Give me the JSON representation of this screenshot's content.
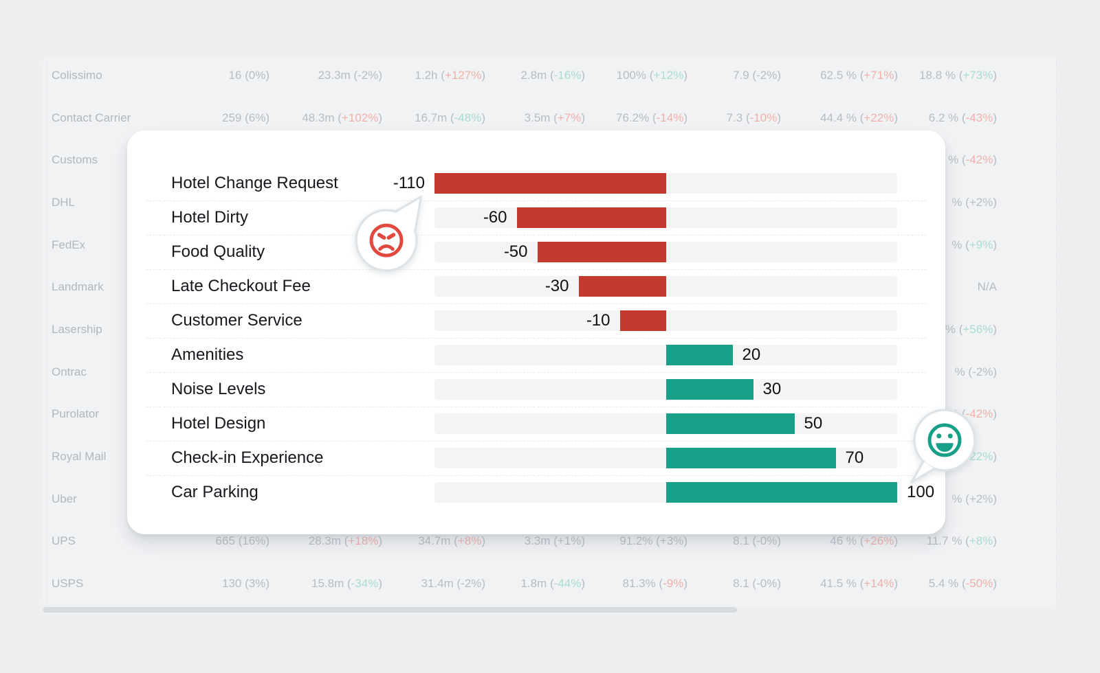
{
  "chart_data": {
    "type": "bar",
    "orientation": "horizontal",
    "categories": [
      "Hotel Change Request",
      "Hotel Dirty",
      "Food Quality",
      "Late Checkout Fee",
      "Customer Service",
      "Amenities",
      "Noise Levels",
      "Hotel Design",
      "Check-in Experience",
      "Car Parking"
    ],
    "values": [
      -110,
      -60,
      -50,
      -30,
      -10,
      20,
      30,
      50,
      70,
      100
    ],
    "value_labels": [
      "-110",
      "-60",
      "-50",
      "-30",
      "-10",
      "20",
      "30",
      "50",
      "70",
      "100"
    ],
    "xlim": [
      -110,
      100
    ],
    "negative_color": "#c23a2e",
    "positive_color": "#17a087",
    "track_color": "#f3f4f4",
    "annotations": {
      "negative_emoji": "angry-face",
      "positive_emoji": "smiley-face"
    }
  },
  "emoji_colors": {
    "angry": "#e2483d",
    "smiley": "#17a087",
    "bubble_outline": "#dde3e7"
  },
  "background_table": {
    "rows": [
      {
        "label": "Colissimo",
        "cells": [
          [
            "16",
            "0%",
            "gray"
          ],
          [
            "23.3m",
            "-2%",
            "gray"
          ],
          [
            "1.2h",
            "+127%",
            "red"
          ],
          [
            "2.8m",
            "-16%",
            "teal"
          ],
          [
            "100%",
            "+12%",
            "teal"
          ],
          [
            "7.9",
            "-2%",
            "gray"
          ],
          [
            "62.5 %",
            "+71%",
            "red"
          ],
          [
            "18.8 %",
            "+73%",
            "teal"
          ]
        ]
      },
      {
        "label": "Contact Carrier",
        "cells": [
          [
            "259",
            "6%",
            "gray"
          ],
          [
            "48.3m",
            "+102%",
            "red"
          ],
          [
            "16.7m",
            "-48%",
            "teal"
          ],
          [
            "3.5m",
            "+7%",
            "red"
          ],
          [
            "76.2%",
            "-14%",
            "red"
          ],
          [
            "7.3",
            "-10%",
            "red"
          ],
          [
            "44.4 %",
            "+22%",
            "red"
          ],
          [
            "6.2 %",
            "-43%",
            "red"
          ]
        ]
      },
      {
        "label": "Customs",
        "cells": [
          null,
          null,
          null,
          null,
          null,
          null,
          null,
          [
            "%",
            "-42%",
            "red"
          ]
        ]
      },
      {
        "label": "DHL",
        "cells": [
          null,
          null,
          null,
          null,
          null,
          null,
          null,
          [
            "%",
            "+2%",
            "gray"
          ]
        ]
      },
      {
        "label": "FedEx",
        "cells": [
          null,
          null,
          null,
          null,
          null,
          null,
          null,
          [
            "%",
            "+9%",
            "teal"
          ]
        ]
      },
      {
        "label": "Landmark",
        "cells": [
          null,
          null,
          null,
          null,
          null,
          null,
          null,
          [
            "N/A",
            null,
            "gray"
          ]
        ]
      },
      {
        "label": "Lasership",
        "cells": [
          null,
          null,
          null,
          null,
          null,
          null,
          null,
          [
            "%",
            "+56%",
            "teal"
          ]
        ]
      },
      {
        "label": "Ontrac",
        "cells": [
          null,
          null,
          null,
          null,
          null,
          null,
          null,
          [
            "%",
            "-2%",
            "gray"
          ]
        ]
      },
      {
        "label": "Purolator",
        "cells": [
          null,
          null,
          null,
          null,
          null,
          null,
          null,
          [
            "%",
            "-42%",
            "red"
          ]
        ]
      },
      {
        "label": "Royal Mail",
        "cells": [
          null,
          null,
          null,
          null,
          null,
          null,
          null,
          [
            "%",
            "+22%",
            "teal"
          ]
        ]
      },
      {
        "label": "Uber",
        "cells": [
          null,
          null,
          null,
          null,
          null,
          null,
          null,
          [
            "%",
            "+2%",
            "gray"
          ]
        ]
      },
      {
        "label": "UPS",
        "cells": [
          [
            "665",
            "16%",
            "gray"
          ],
          [
            "28.3m",
            "+18%",
            "red"
          ],
          [
            "34.7m",
            "+8%",
            "red"
          ],
          [
            "3.3m",
            "+1%",
            "gray"
          ],
          [
            "91.2%",
            "+3%",
            "gray"
          ],
          [
            "8.1",
            "-0%",
            "gray"
          ],
          [
            "46 %",
            "+26%",
            "red"
          ],
          [
            "11.7 %",
            "+8%",
            "teal"
          ]
        ]
      },
      {
        "label": "USPS",
        "cells": [
          [
            "130",
            "3%",
            "gray"
          ],
          [
            "15.8m",
            "-34%",
            "teal"
          ],
          [
            "31.4m",
            "-2%",
            "gray"
          ],
          [
            "1.8m",
            "-44%",
            "teal"
          ],
          [
            "81.3%",
            "-9%",
            "red"
          ],
          [
            "8.1",
            "-0%",
            "gray"
          ],
          [
            "41.5 %",
            "+14%",
            "red"
          ],
          [
            "5.4 %",
            "-50%",
            "red"
          ]
        ]
      }
    ],
    "text_colors": {
      "gray": "#b6bcc4",
      "red": "#f0b0aa",
      "teal": "#a8dcce",
      "label": "#b0b7c0"
    }
  }
}
